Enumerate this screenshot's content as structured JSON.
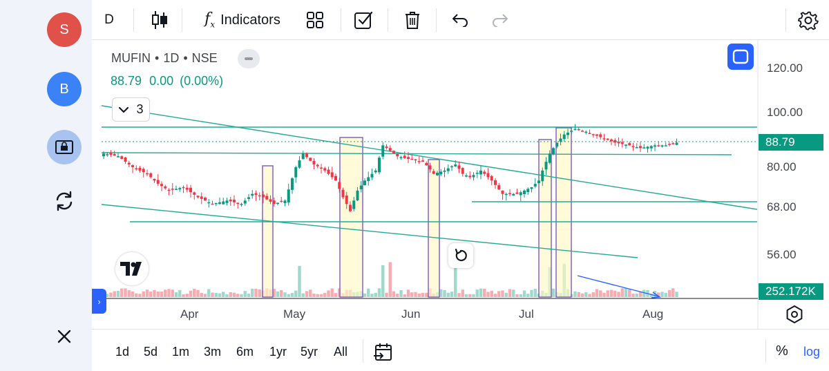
{
  "sidebar": {
    "avatar_s": "S",
    "avatar_b": "B",
    "icons": [
      "lock-icon",
      "sync-icon",
      "close-icon"
    ]
  },
  "toolbar": {
    "interval": "D",
    "indicators_label": "Indicators",
    "icons": [
      "candles-icon",
      "fx-icon",
      "templates-icon",
      "checkbox-icon",
      "trash-icon",
      "undo-icon",
      "redo-icon",
      "settings-icon"
    ]
  },
  "legend": {
    "symbol": "MUFIN",
    "interval": "1D",
    "exchange": "NSE",
    "sep": "•",
    "last": "88.79",
    "change": "0.00",
    "change_pct": "(0.00%)",
    "indicator_count": "3"
  },
  "price_axis": {
    "labels": [
      "120.00",
      "100.00",
      "80.00",
      "68.00",
      "56.00"
    ],
    "last_price_tag": "88.79",
    "volume_tag": "252.172K"
  },
  "time_axis": {
    "labels": [
      "Apr",
      "May",
      "Jun",
      "Jul",
      "Aug"
    ]
  },
  "range_bar": {
    "ranges": [
      "1d",
      "5d",
      "1m",
      "3m",
      "6m",
      "1yr",
      "5yr",
      "All"
    ],
    "percent": "%",
    "log": "log"
  },
  "colors": {
    "up": "#089981",
    "down": "#f23645",
    "accent": "#2962ff",
    "trendline": "#22ab94",
    "highlight_fill": "#fff9c4",
    "highlight_stroke": "#7e57c2"
  },
  "chart_data": {
    "type": "candlestick",
    "symbol": "MUFIN",
    "interval": "1D",
    "exchange": "NSE",
    "last": 88.79,
    "ylim": [
      52,
      128
    ],
    "price_ticks": [
      120,
      100,
      80,
      68,
      56
    ],
    "x_ticks": [
      "Apr",
      "May",
      "Jun",
      "Jul",
      "Aug"
    ],
    "close_path": [
      [
        0,
        85
      ],
      [
        4,
        84
      ],
      [
        8,
        80
      ],
      [
        12,
        78
      ],
      [
        15,
        75
      ],
      [
        18,
        73
      ],
      [
        22,
        74
      ],
      [
        26,
        71
      ],
      [
        30,
        69
      ],
      [
        34,
        70
      ],
      [
        38,
        69
      ],
      [
        41,
        72
      ],
      [
        44,
        71
      ],
      [
        47,
        69
      ],
      [
        50,
        70
      ],
      [
        53,
        80
      ],
      [
        55,
        85
      ],
      [
        58,
        81
      ],
      [
        61,
        79
      ],
      [
        64,
        76
      ],
      [
        66,
        71
      ],
      [
        68,
        67
      ],
      [
        70,
        73
      ],
      [
        72,
        76
      ],
      [
        75,
        79
      ],
      [
        77,
        88
      ],
      [
        79,
        86
      ],
      [
        81,
        84
      ],
      [
        84,
        83
      ],
      [
        88,
        82
      ],
      [
        91,
        78
      ],
      [
        94,
        79
      ],
      [
        97,
        81
      ],
      [
        99,
        78
      ],
      [
        101,
        77
      ],
      [
        104,
        79
      ],
      [
        107,
        76
      ],
      [
        110,
        72
      ],
      [
        114,
        72
      ],
      [
        118,
        74
      ],
      [
        120,
        76
      ],
      [
        123,
        85
      ],
      [
        125,
        89
      ],
      [
        127,
        92
      ],
      [
        130,
        94
      ],
      [
        133,
        93
      ],
      [
        137,
        91
      ],
      [
        141,
        89
      ],
      [
        145,
        88
      ],
      [
        148,
        87
      ],
      [
        152,
        88
      ],
      [
        155,
        88
      ],
      [
        158,
        89
      ]
    ],
    "drawings": {
      "horizontal_levels": [
        93,
        83.5,
        70.5,
        66
      ],
      "highlight_boxes": 5
    },
    "volume_spikes_x": [
      54,
      77,
      79,
      97,
      123,
      127
    ]
  }
}
